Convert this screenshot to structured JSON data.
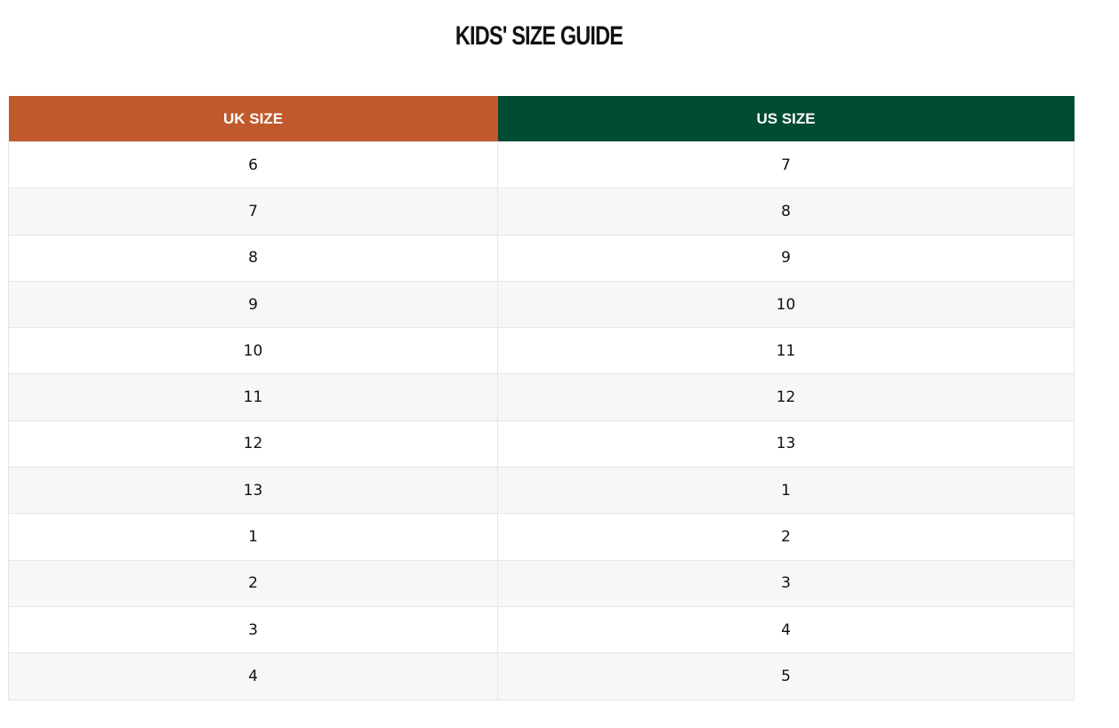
{
  "title": "KIDS' SIZE GUIDE",
  "table": {
    "header": [
      "UK SIZE",
      "US SIZE"
    ],
    "rows": [
      [
        6,
        7
      ],
      [
        7,
        8
      ],
      [
        8,
        9
      ],
      [
        9,
        10
      ],
      [
        10,
        11
      ],
      [
        11,
        12
      ],
      [
        12,
        13
      ],
      [
        13,
        1
      ],
      [
        1,
        2
      ],
      [
        2,
        3
      ],
      [
        3,
        4
      ],
      [
        4,
        5
      ]
    ]
  }
}
